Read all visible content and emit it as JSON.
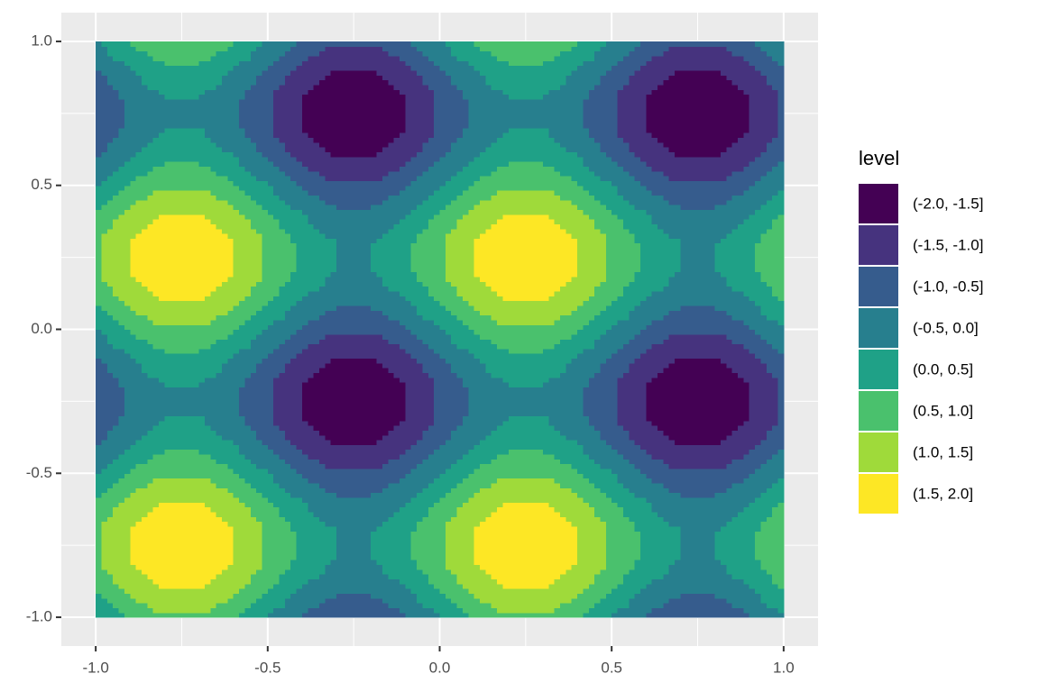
{
  "chart_data": {
    "type": "filled_contour",
    "x": [
      -1,
      -0.9,
      -0.8,
      -0.7,
      -0.6,
      -0.5,
      -0.4,
      -0.3,
      -0.2,
      -0.1,
      0,
      0.1,
      0.2,
      0.3,
      0.4,
      0.5,
      0.6,
      0.7,
      0.8,
      0.9,
      1
    ],
    "y": [
      -1,
      -0.9,
      -0.8,
      -0.7,
      -0.6,
      -0.5,
      -0.4,
      -0.3,
      -0.2,
      -0.1,
      0,
      0.1,
      0.2,
      0.3,
      0.4,
      0.5,
      0.6,
      0.7,
      0.8,
      0.9,
      1
    ],
    "z": [
      [
        0,
        0.59,
        0.95,
        0.95,
        0.59,
        0,
        -0.59,
        -0.95,
        -0.95,
        -0.59,
        0,
        0.59,
        0.95,
        0.95,
        0.59,
        0,
        -0.59,
        -0.95,
        -0.95,
        -0.59,
        0
      ],
      [
        0.59,
        1.18,
        1.54,
        1.54,
        1.18,
        0.59,
        0,
        -0.36,
        -0.36,
        0,
        0.59,
        1.18,
        1.54,
        1.54,
        1.18,
        0.59,
        0,
        -0.36,
        -0.36,
        0,
        0.59
      ],
      [
        0.95,
        1.54,
        1.9,
        1.9,
        1.54,
        0.95,
        0.36,
        0,
        0,
        0.36,
        0.95,
        1.54,
        1.9,
        1.9,
        1.54,
        0.95,
        0.36,
        0,
        0,
        0.36,
        0.95
      ],
      [
        0.95,
        1.54,
        1.9,
        1.9,
        1.54,
        0.95,
        0.36,
        0,
        0,
        0.36,
        0.95,
        1.54,
        1.9,
        1.9,
        1.54,
        0.95,
        0.36,
        0,
        0,
        0.36,
        0.95
      ],
      [
        0.59,
        1.18,
        1.54,
        1.54,
        1.18,
        0.59,
        0,
        -0.36,
        -0.36,
        0,
        0.59,
        1.18,
        1.54,
        1.54,
        1.18,
        0.59,
        0,
        -0.36,
        -0.36,
        0,
        0.59
      ],
      [
        0,
        0.59,
        0.95,
        0.95,
        0.59,
        0,
        -0.59,
        -0.95,
        -0.95,
        -0.59,
        0,
        0.59,
        0.95,
        0.95,
        0.59,
        0,
        -0.59,
        -0.95,
        -0.95,
        -0.59,
        0
      ],
      [
        -0.59,
        0,
        0.36,
        0.36,
        0,
        -0.59,
        -1.18,
        -1.54,
        -1.54,
        -1.18,
        -0.59,
        0,
        0.36,
        0.36,
        0,
        -0.59,
        -1.18,
        -1.54,
        -1.54,
        -1.18,
        -0.59
      ],
      [
        -0.95,
        -0.36,
        0,
        0,
        -0.36,
        -0.95,
        -1.54,
        -1.9,
        -1.9,
        -1.54,
        -0.95,
        -0.36,
        0,
        0,
        -0.36,
        -0.95,
        -1.54,
        -1.9,
        -1.9,
        -1.54,
        -0.95
      ],
      [
        -0.95,
        -0.36,
        0,
        0,
        -0.36,
        -0.95,
        -1.54,
        -1.9,
        -1.9,
        -1.54,
        -0.95,
        -0.36,
        0,
        0,
        -0.36,
        -0.95,
        -1.54,
        -1.9,
        -1.9,
        -1.54,
        -0.95
      ],
      [
        -0.59,
        0,
        0.36,
        0.36,
        0,
        -0.59,
        -1.18,
        -1.54,
        -1.54,
        -1.18,
        -0.59,
        0,
        0.36,
        0.36,
        0,
        -0.59,
        -1.18,
        -1.54,
        -1.54,
        -1.18,
        -0.59
      ],
      [
        0,
        0.59,
        0.95,
        0.95,
        0.59,
        0,
        -0.59,
        -0.95,
        -0.95,
        -0.59,
        0,
        0.59,
        0.95,
        0.95,
        0.59,
        0,
        -0.59,
        -0.95,
        -0.95,
        -0.59,
        0
      ],
      [
        0.59,
        1.18,
        1.54,
        1.54,
        1.18,
        0.59,
        0,
        -0.36,
        -0.36,
        0,
        0.59,
        1.18,
        1.54,
        1.54,
        1.18,
        0.59,
        0,
        -0.36,
        -0.36,
        0,
        0.59
      ],
      [
        0.95,
        1.54,
        1.9,
        1.9,
        1.54,
        0.95,
        0.36,
        0,
        0,
        0.36,
        0.95,
        1.54,
        1.9,
        1.9,
        1.54,
        0.95,
        0.36,
        0,
        0,
        0.36,
        0.95
      ],
      [
        0.95,
        1.54,
        1.9,
        1.9,
        1.54,
        0.95,
        0.36,
        0,
        0,
        0.36,
        0.95,
        1.54,
        1.9,
        1.9,
        1.54,
        0.95,
        0.36,
        0,
        0,
        0.36,
        0.95
      ],
      [
        0.59,
        1.18,
        1.54,
        1.54,
        1.18,
        0.59,
        0,
        -0.36,
        -0.36,
        0,
        0.59,
        1.18,
        1.54,
        1.54,
        1.18,
        0.59,
        0,
        -0.36,
        -0.36,
        0,
        0.59
      ],
      [
        0,
        0.59,
        0.95,
        0.95,
        0.59,
        0,
        -0.59,
        -0.95,
        -0.95,
        -0.59,
        0,
        0.59,
        0.95,
        0.95,
        0.59,
        0,
        -0.59,
        -0.95,
        -0.95,
        -0.59,
        0
      ],
      [
        -0.59,
        0,
        0.36,
        0.36,
        0,
        -0.59,
        -1.18,
        -1.54,
        -1.54,
        -1.18,
        -0.59,
        0,
        0.36,
        0.36,
        0,
        -0.59,
        -1.18,
        -1.54,
        -1.54,
        -1.18,
        -0.59
      ],
      [
        -0.95,
        -0.36,
        0,
        0,
        -0.36,
        -0.95,
        -1.54,
        -1.9,
        -1.9,
        -1.54,
        -0.95,
        -0.36,
        0,
        0,
        -0.36,
        -0.95,
        -1.54,
        -1.9,
        -1.9,
        -1.54,
        -0.95
      ],
      [
        -0.95,
        -0.36,
        0,
        0,
        -0.36,
        -0.95,
        -1.54,
        -1.9,
        -1.9,
        -1.54,
        -0.95,
        -0.36,
        0,
        0,
        -0.36,
        -0.95,
        -1.54,
        -1.9,
        -1.9,
        -1.54,
        -0.95
      ],
      [
        -0.59,
        0,
        0.36,
        0.36,
        0,
        -0.59,
        -1.18,
        -1.54,
        -1.54,
        -1.18,
        -0.59,
        0,
        0.36,
        0.36,
        0,
        -0.59,
        -1.18,
        -1.54,
        -1.54,
        -1.18,
        -0.59
      ],
      [
        0,
        0.59,
        0.95,
        0.95,
        0.59,
        0,
        -0.59,
        -0.95,
        -0.95,
        -0.59,
        0,
        0.59,
        0.95,
        0.95,
        0.59,
        0,
        -0.59,
        -0.95,
        -0.95,
        -0.59,
        0
      ]
    ],
    "breaks": [
      -2,
      -1.5,
      -1,
      -0.5,
      0,
      0.5,
      1,
      1.5,
      2
    ],
    "legend_title": "level",
    "levels": [
      {
        "label": "(-2.0, -1.5]",
        "color": "#440154"
      },
      {
        "label": "(-1.5, -1.0]",
        "color": "#46337E"
      },
      {
        "label": "(-1.0, -0.5]",
        "color": "#365C8D"
      },
      {
        "label": "(-0.5, 0.0]",
        "color": "#277F8E"
      },
      {
        "label": "(0.0, 0.5]",
        "color": "#1FA187"
      },
      {
        "label": "(0.5, 1.0]",
        "color": "#4AC16D"
      },
      {
        "label": "(1.0, 1.5]",
        "color": "#9FDA3A"
      },
      {
        "label": "(1.5, 2.0]",
        "color": "#FDE725"
      }
    ],
    "xlim": [
      -1.1,
      1.1
    ],
    "ylim": [
      -1.1,
      1.1
    ],
    "xticks": [
      {
        "value": -1,
        "label": "-1.0"
      },
      {
        "value": -0.5,
        "label": "-0.5"
      },
      {
        "value": 0,
        "label": "0.0"
      },
      {
        "value": 0.5,
        "label": "0.5"
      },
      {
        "value": 1,
        "label": "1.0"
      }
    ],
    "yticks": [
      {
        "value": -1,
        "label": "-1.0"
      },
      {
        "value": -0.5,
        "label": "-0.5"
      },
      {
        "value": 0,
        "label": "0.0"
      },
      {
        "value": 0.5,
        "label": "0.5"
      },
      {
        "value": 1,
        "label": "1.0"
      }
    ],
    "grid": true,
    "minor_grid": true,
    "legend": "right"
  }
}
